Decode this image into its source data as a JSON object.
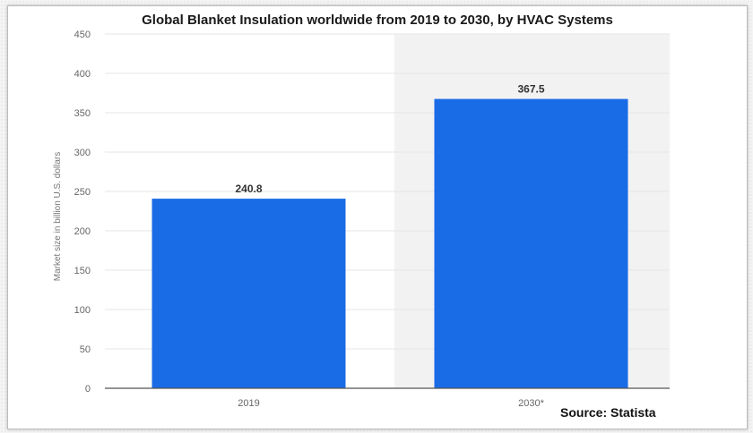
{
  "title": "Global Blanket Insulation worldwide from 2019 to 2030, by HVAC Systems",
  "source": "Source: Statista",
  "colors": {
    "bar": "#1a6be6",
    "grid": "#e6e6e6",
    "shade": "#f2f2f2",
    "axis": "#555555",
    "tick_text": "#666666"
  },
  "chart_data": {
    "type": "bar",
    "title": "Global Blanket Insulation worldwide from 2019 to 2030, by HVAC Systems",
    "categories": [
      "2019",
      "2030*"
    ],
    "values": [
      240.8,
      367.5
    ],
    "data_labels": [
      "240.8",
      "367.5"
    ],
    "xlabel": "",
    "ylabel": "Market size in billion U.S. dollars",
    "ylim": [
      0,
      450
    ],
    "yticks": [
      0,
      50,
      100,
      150,
      200,
      250,
      300,
      350,
      400,
      450
    ],
    "grid": true,
    "legend": "none",
    "shaded_categories": [
      "2030*"
    ]
  }
}
